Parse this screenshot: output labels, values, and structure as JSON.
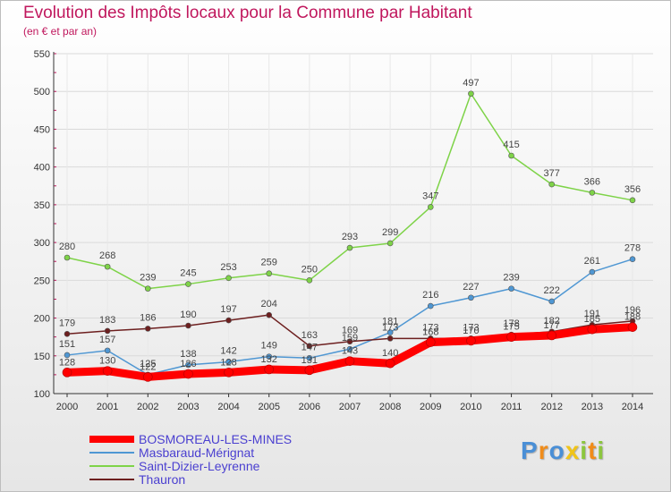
{
  "chart_data": {
    "type": "line",
    "title": "Evolution des Impôts locaux pour la Commune par Habitant",
    "subtitle": "(en € et par an)",
    "x": [
      "2000",
      "2001",
      "2002",
      "2003",
      "2004",
      "2005",
      "2006",
      "2007",
      "2008",
      "2009",
      "2010",
      "2011",
      "2012",
      "2013",
      "2014"
    ],
    "ylim": [
      100,
      550
    ],
    "yticks": [
      "100",
      "150",
      "200",
      "250",
      "300",
      "350",
      "400",
      "450",
      "500",
      "550"
    ],
    "grid": true,
    "legend_position": "bottom-left",
    "series": [
      {
        "name": "BOSMOREAU-LES-MINES",
        "color": "#ff0000",
        "values": [
          128,
          130,
          122,
          126,
          128,
          132,
          131,
          143,
          140,
          168,
          170,
          175,
          177,
          185,
          188
        ],
        "labels": [
          "128",
          "130",
          "122",
          "126",
          "128",
          "132",
          "131",
          "143",
          "140",
          "168",
          "170",
          "175",
          "177",
          "185",
          "188"
        ]
      },
      {
        "name": "Masbaraud-Mérignat",
        "color": "#4f97d3",
        "values": [
          151,
          157,
          125,
          138,
          142,
          149,
          147,
          159,
          181,
          216,
          227,
          239,
          222,
          261,
          278
        ],
        "labels": [
          "151",
          "157",
          "125",
          "138",
          "142",
          "149",
          "147",
          "159",
          "181",
          "216",
          "227",
          "239",
          "222",
          "261",
          "278"
        ]
      },
      {
        "name": "Saint-Dizier-Leyrenne",
        "color": "#7ed348",
        "values": [
          280,
          268,
          239,
          245,
          253,
          259,
          250,
          293,
          299,
          347,
          497,
          415,
          377,
          366,
          356
        ],
        "labels": [
          "280",
          "268",
          "239",
          "245",
          "253",
          "259",
          "250",
          "293",
          "299",
          "347",
          "497",
          "415",
          "377",
          "366",
          "356"
        ]
      },
      {
        "name": "Thauron",
        "color": "#6d1f1f",
        "values": [
          179,
          183,
          186,
          190,
          197,
          204,
          163,
          169,
          173,
          173,
          173,
          178,
          182,
          191,
          196
        ],
        "labels": [
          "179",
          "183",
          "186",
          "190",
          "197",
          "204",
          "163",
          "169",
          "173",
          "173",
          "173",
          "178",
          "182",
          "191",
          "196"
        ]
      }
    ]
  },
  "logo": {
    "letters": [
      "P",
      "r",
      "o",
      "x",
      "i",
      "t",
      "i"
    ],
    "colors": [
      "#4a8fd6",
      "#f08c1a",
      "#4a8fd6",
      "#f0c419",
      "#8cc63f",
      "#f08c1a",
      "#8cc63f"
    ]
  }
}
